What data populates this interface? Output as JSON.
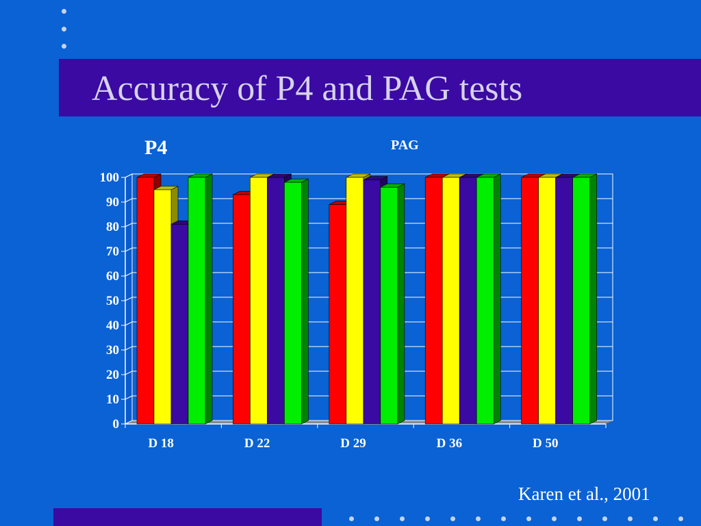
{
  "slide": {
    "title": "Accuracy of P4 and PAG tests",
    "citation": "Karen et al., 2001"
  },
  "chart_data": {
    "type": "bar",
    "annotations": [
      "P4",
      "PAG"
    ],
    "categories": [
      "D 18",
      "D 22",
      "D 29",
      "D 36",
      "D 50"
    ],
    "ylim": [
      0,
      100
    ],
    "yticks": [
      0,
      10,
      20,
      30,
      40,
      50,
      60,
      70,
      80,
      90,
      100
    ],
    "grid": true,
    "legend": "none",
    "series": [
      {
        "color": "#ff0000",
        "values": [
          100,
          93,
          89,
          100,
          100
        ]
      },
      {
        "color": "#ffff00",
        "values": [
          95,
          100,
          100,
          100,
          100
        ]
      },
      {
        "color": "#3a0aa3",
        "values": [
          81,
          100,
          99,
          100,
          100
        ]
      },
      {
        "color": "#00ee00",
        "values": [
          100,
          98,
          96,
          100,
          100
        ]
      }
    ]
  }
}
